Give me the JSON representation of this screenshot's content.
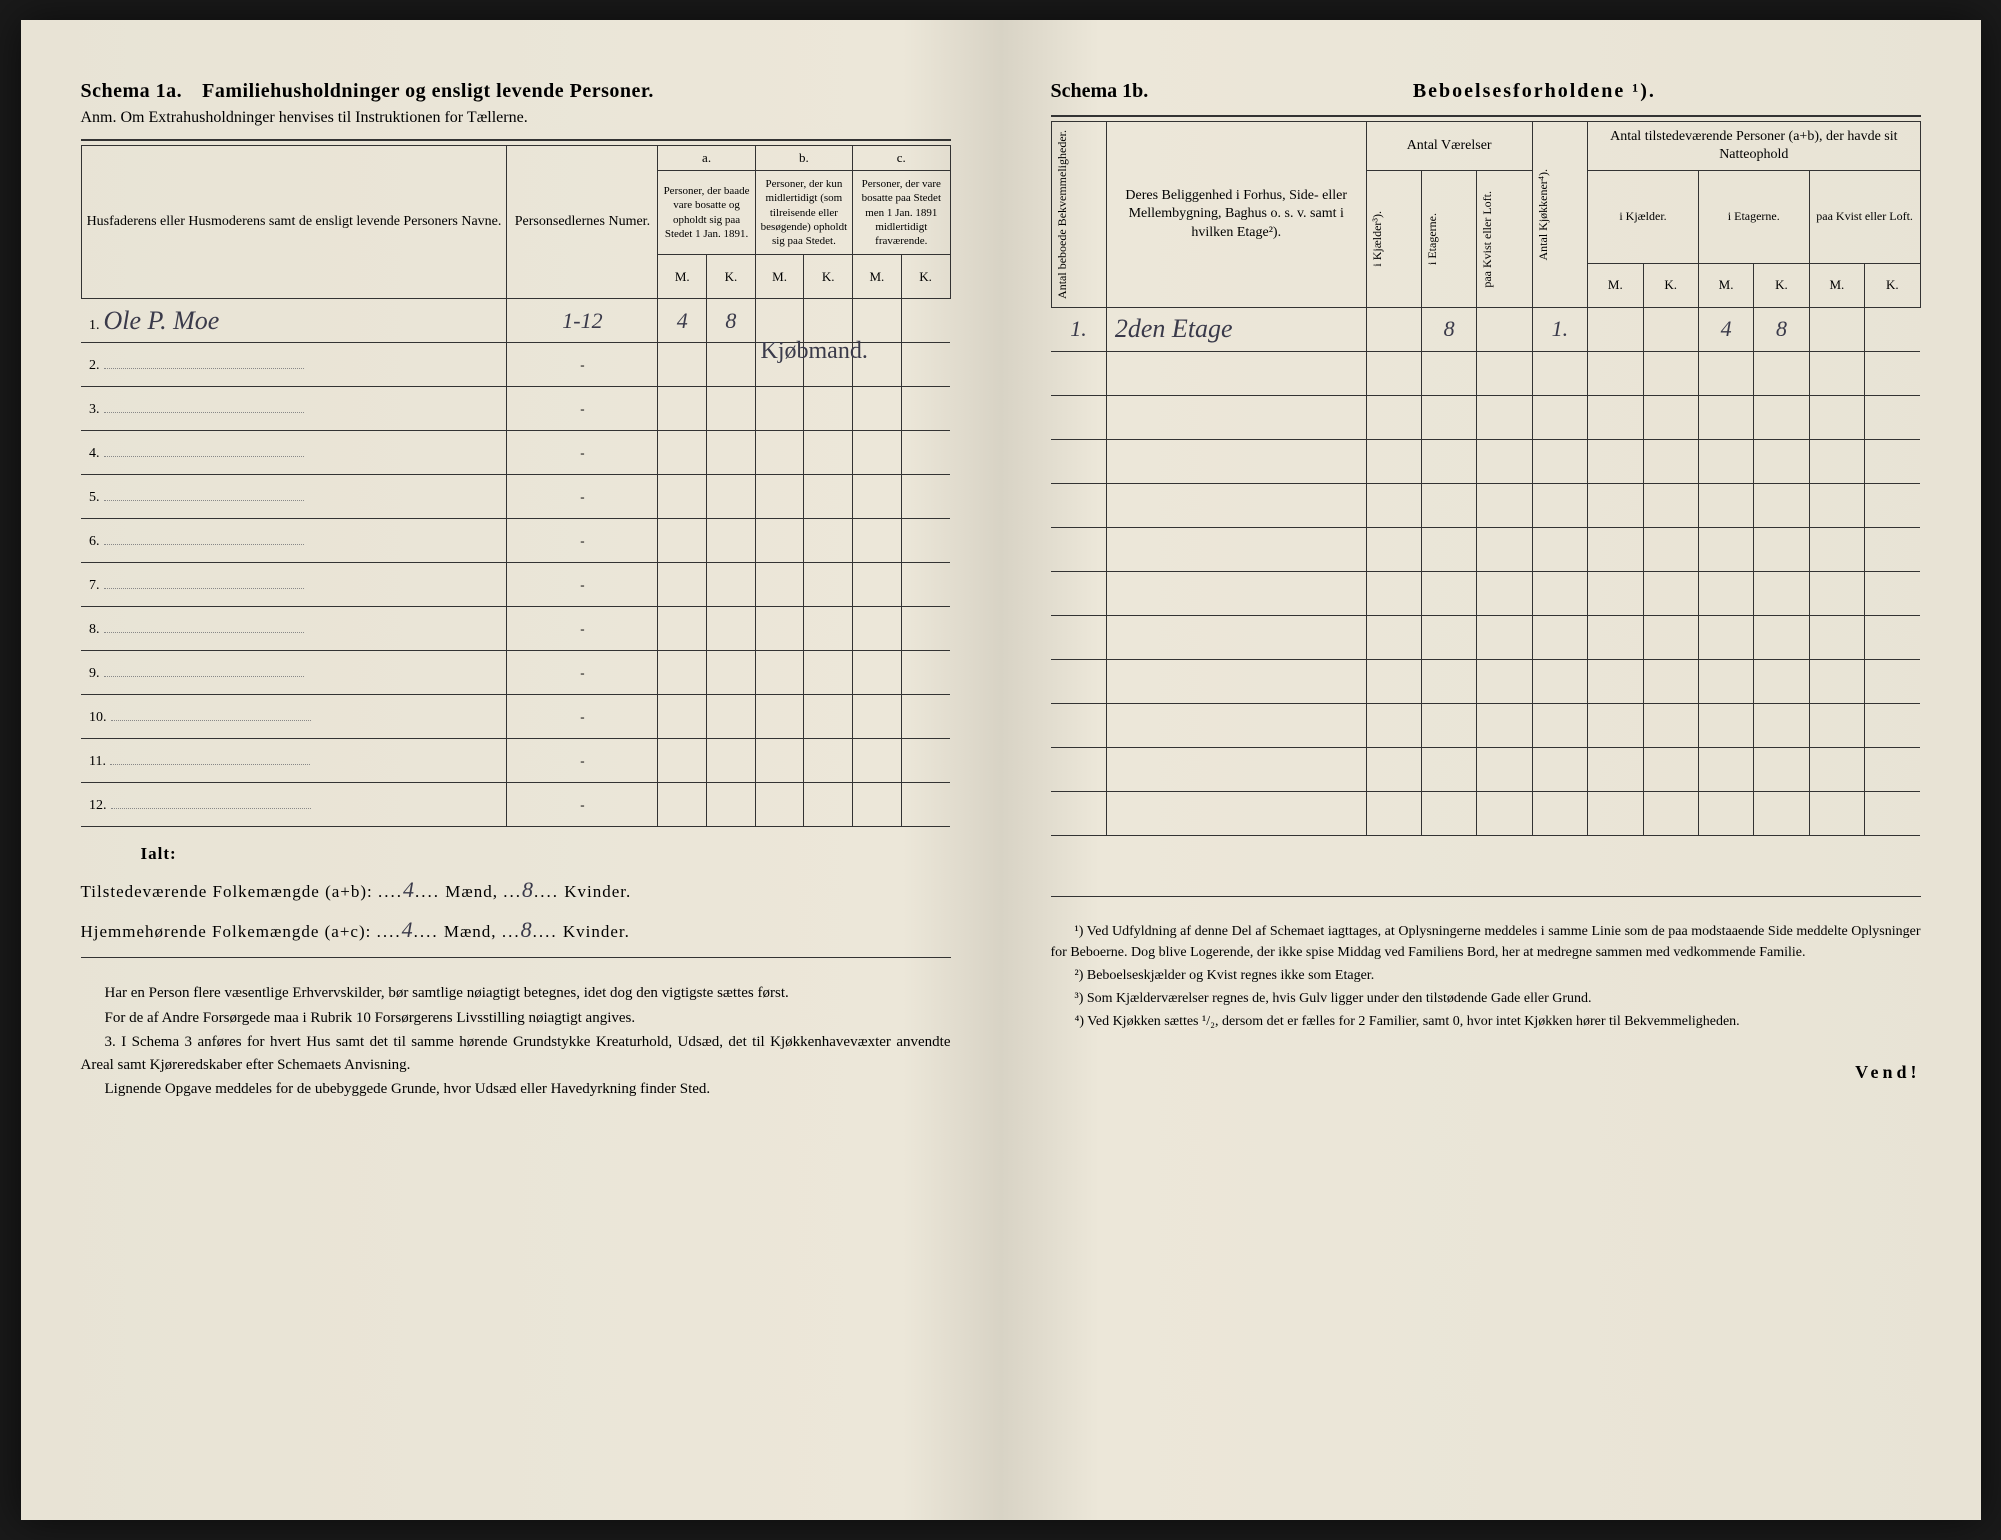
{
  "left": {
    "schema_label": "Schema 1a.",
    "schema_title": "Familiehusholdninger og ensligt levende Personer.",
    "anm": "Anm. Om Extrahusholdninger henvises til Instruktionen for Tællerne.",
    "col_name": "Husfaderens eller Husmoderens samt de ensligt levende Personers Navne.",
    "col_numer": "Personsedlernes Numer.",
    "group_a": "a.",
    "group_a_desc": "Personer, der baade vare bosatte og opholdt sig paa Stedet 1 Jan. 1891.",
    "group_b": "b.",
    "group_b_desc": "Personer, der kun midlertidigt (som tilreisende eller besøgende) opholdt sig paa Stedet.",
    "group_c": "c.",
    "group_c_desc": "Personer, der vare bosatte paa Stedet men 1 Jan. 1891 midlertidigt fraværende.",
    "mk_m": "M.",
    "mk_k": "K.",
    "rows": [
      {
        "n": "1.",
        "name": "Ole P. Moe",
        "numer": "1-12",
        "am": "4",
        "ak": "8",
        "bm": "",
        "bk": "",
        "cm": "",
        "ck": ""
      },
      {
        "n": "2.",
        "name": "",
        "numer": "-",
        "am": "",
        "ak": "",
        "bm": "",
        "bk": "",
        "cm": "",
        "ck": ""
      },
      {
        "n": "3.",
        "name": "",
        "numer": "-",
        "am": "",
        "ak": "",
        "bm": "",
        "bk": "",
        "cm": "",
        "ck": ""
      },
      {
        "n": "4.",
        "name": "",
        "numer": "-",
        "am": "",
        "ak": "",
        "bm": "",
        "bk": "",
        "cm": "",
        "ck": ""
      },
      {
        "n": "5.",
        "name": "",
        "numer": "-",
        "am": "",
        "ak": "",
        "bm": "",
        "bk": "",
        "cm": "",
        "ck": ""
      },
      {
        "n": "6.",
        "name": "",
        "numer": "-",
        "am": "",
        "ak": "",
        "bm": "",
        "bk": "",
        "cm": "",
        "ck": ""
      },
      {
        "n": "7.",
        "name": "",
        "numer": "-",
        "am": "",
        "ak": "",
        "bm": "",
        "bk": "",
        "cm": "",
        "ck": ""
      },
      {
        "n": "8.",
        "name": "",
        "numer": "-",
        "am": "",
        "ak": "",
        "bm": "",
        "bk": "",
        "cm": "",
        "ck": ""
      },
      {
        "n": "9.",
        "name": "",
        "numer": "-",
        "am": "",
        "ak": "",
        "bm": "",
        "bk": "",
        "cm": "",
        "ck": ""
      },
      {
        "n": "10.",
        "name": "",
        "numer": "-",
        "am": "",
        "ak": "",
        "bm": "",
        "bk": "",
        "cm": "",
        "ck": ""
      },
      {
        "n": "11.",
        "name": "",
        "numer": "-",
        "am": "",
        "ak": "",
        "bm": "",
        "bk": "",
        "cm": "",
        "ck": ""
      },
      {
        "n": "12.",
        "name": "",
        "numer": "-",
        "am": "",
        "ak": "",
        "bm": "",
        "bk": "",
        "cm": "",
        "ck": ""
      }
    ],
    "marginal_note": "Kjøbmand.",
    "totals_label": "Ialt:",
    "tot1_label": "Tilstedeværende Folkemængde (a+b):",
    "tot2_label": "Hjemmehørende Folkemængde (a+c):",
    "tot1_m": "4",
    "tot1_k": "8",
    "tot2_m": "4",
    "tot2_k": "8",
    "maend": "Mænd,",
    "kvinder": "Kvinder.",
    "note_p1": "Har en Person flere væsentlige Erhvervskilder, bør samtlige nøiagtigt betegnes, idet dog den vigtigste sættes først.",
    "note_p2": "For de af Andre Forsørgede maa i Rubrik 10 Forsørgerens Livsstilling nøiagtigt angives.",
    "note_p3_num": "3.",
    "note_p3": "I Schema 3 anføres for hvert Hus samt det til samme hørende Grundstykke Kreaturhold, Udsæd, det til Kjøkkenhavevæxter anvendte Areal samt Kjøreredskaber efter Schemaets Anvisning.",
    "note_p4": "Lignende Opgave meddeles for de ubebyggede Grunde, hvor Udsæd eller Havedyrkning finder Sted."
  },
  "right": {
    "schema_label": "Schema 1b.",
    "schema_title": "Beboelsesforholdene ¹).",
    "col_bekv": "Antal beboede Bekvemmeligheder.",
    "col_belig": "Deres Beliggenhed i Forhus, Side- eller Mellembygning, Baghus o. s. v. samt i hvilken Etage²).",
    "col_vaer": "Antal Værelser",
    "col_kjael": "i Kjælder³).",
    "col_etag": "i Etagerne.",
    "col_kvist": "paa Kvist eller Loft.",
    "col_kjokk": "Antal Kjøkkener⁴).",
    "col_pers": "Antal tilstedeværende Personer (a+b), der havde sit Natteophold",
    "col_p_kjael": "i Kjælder.",
    "col_p_etag": "i Etagerne.",
    "col_p_kvist": "paa Kvist eller Loft.",
    "mk_m": "M.",
    "mk_k": "K.",
    "row1": {
      "bekv": "1.",
      "belig": "2den Etage",
      "kjael": "",
      "etag": "8",
      "kvist": "",
      "kjokk": "1.",
      "pkjm": "",
      "pkjk": "",
      "pem": "4",
      "pek": "8",
      "pkm": "",
      "pkk": ""
    },
    "fn1": "¹) Ved Udfyldning af denne Del af Schemaet iagttages, at Oplysningerne meddeles i samme Linie som de paa modstaaende Side meddelte Oplysninger for Beboerne. Dog blive Logerende, der ikke spise Middag ved Familiens Bord, her at medregne sammen med vedkommende Familie.",
    "fn2": "²) Beboelseskjælder og Kvist regnes ikke som Etager.",
    "fn3": "³) Som Kjælderværelser regnes de, hvis Gulv ligger under den tilstødende Gade eller Grund.",
    "fn4": "⁴) Ved Kjøkken sættes ¹/₂, dersom det er fælles for 2 Familier, samt 0, hvor intet Kjøkken hører til Bekvemmeligheden.",
    "vend": "Vend!"
  }
}
